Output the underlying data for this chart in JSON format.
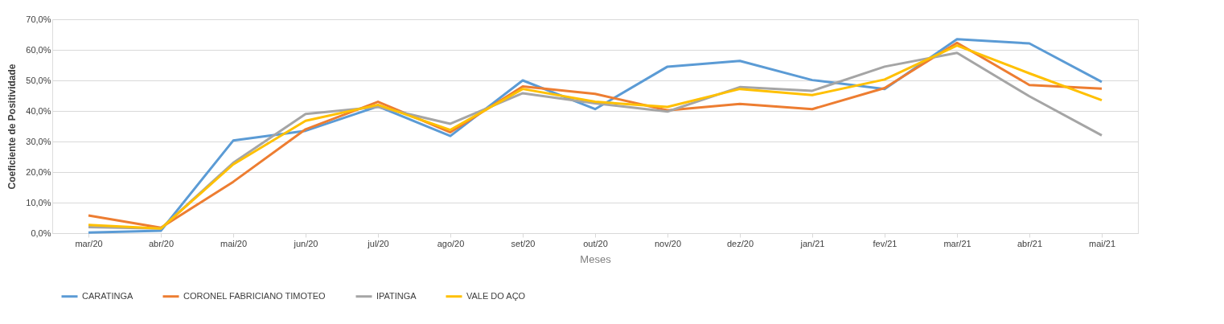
{
  "chart_data": {
    "type": "line",
    "xlabel": "Meses",
    "ylabel": "Coeficiente de Positividade",
    "categories": [
      "mar/20",
      "abr/20",
      "mai/20",
      "jun/20",
      "jul/20",
      "ago/20",
      "set/20",
      "out/20",
      "nov/20",
      "dez/20",
      "jan/21",
      "fev/21",
      "mar/21",
      "abr/21",
      "mai/21"
    ],
    "series": [
      {
        "name": "CARATINGA",
        "color": "#5b9bd5",
        "values": [
          0.2,
          0.8,
          30.3,
          33.5,
          41.5,
          31.8,
          50.0,
          40.6,
          54.5,
          56.4,
          50.1,
          47.2,
          63.5,
          62.1,
          49.5
        ]
      },
      {
        "name": "CORONEL FABRICIANO TIMOTEO",
        "color": "#ed7d31",
        "values": [
          5.8,
          1.8,
          16.8,
          34.0,
          43.0,
          33.0,
          48.0,
          45.6,
          40.2,
          42.3,
          40.6,
          47.5,
          62.3,
          48.5,
          47.3
        ]
      },
      {
        "name": "IPATINGA",
        "color": "#a5a5a5",
        "values": [
          2.0,
          1.5,
          23.0,
          39.0,
          41.3,
          35.8,
          45.8,
          42.5,
          39.8,
          47.8,
          46.6,
          54.5,
          59.0,
          44.8,
          32.0
        ]
      },
      {
        "name": "VALE DO AÇO",
        "color": "#ffc000",
        "values": [
          2.7,
          1.5,
          22.5,
          36.8,
          42.0,
          33.8,
          47.2,
          43.0,
          41.3,
          47.2,
          45.2,
          50.3,
          61.4,
          52.3,
          43.5
        ]
      }
    ],
    "ylim": [
      0,
      70
    ],
    "yticks": [
      {
        "value": 0,
        "label": "0,0%"
      },
      {
        "value": 10,
        "label": "10,0%"
      },
      {
        "value": 20,
        "label": "20,0%"
      },
      {
        "value": 30,
        "label": "30,0%"
      },
      {
        "value": 40,
        "label": "40,0%"
      },
      {
        "value": 50,
        "label": "50,0%"
      },
      {
        "value": 60,
        "label": "60,0%"
      },
      {
        "value": 70,
        "label": "70,0%"
      }
    ],
    "grid": "y",
    "legend": "bottom",
    "marker": "none",
    "line_style": "solid"
  }
}
